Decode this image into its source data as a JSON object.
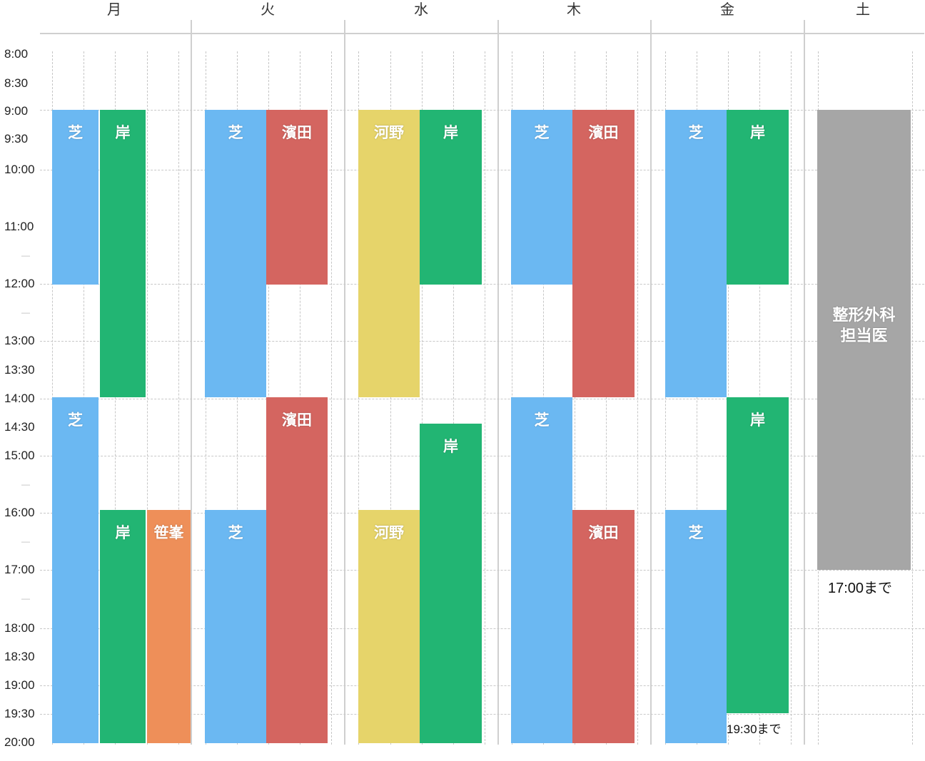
{
  "colors": {
    "shiba": "#6bb8f2",
    "kishi": "#22b573",
    "hamada": "#d46560",
    "kono": "#e6d46a",
    "sasamine": "#ee8f59",
    "seikei": "#a6a6a6"
  },
  "days": [
    "月",
    "火",
    "水",
    "木",
    "金",
    "土"
  ],
  "time_labels": [
    "8:00",
    "8:30",
    "9:00",
    "9:30",
    "10:00",
    "",
    "11:00",
    "—",
    "12:00",
    "—",
    "13:00",
    "13:30",
    "14:00",
    "14:30",
    "15:00",
    "—",
    "16:00",
    "—",
    "17:00",
    "—",
    "18:00",
    "18:30",
    "19:00",
    "19:30",
    "20:00"
  ],
  "blocks": [
    {
      "day": 0,
      "lane": 0,
      "start": "9:00",
      "end": "12:00",
      "doctor": "芝",
      "color": "shiba"
    },
    {
      "day": 0,
      "lane": 1,
      "start": "9:00",
      "end": "14:00",
      "doctor": "岸",
      "color": "kishi"
    },
    {
      "day": 0,
      "lane": 0,
      "start": "14:00",
      "end": "20:00",
      "doctor": "芝",
      "color": "shiba"
    },
    {
      "day": 0,
      "lane": 1,
      "start": "16:00",
      "end": "20:00",
      "doctor": "岸",
      "color": "kishi"
    },
    {
      "day": 0,
      "lane": 2,
      "start": "16:00",
      "end": "20:00",
      "doctor": "笹峯",
      "color": "sasamine"
    },
    {
      "day": 1,
      "lane": 0,
      "start": "9:00",
      "end": "14:00",
      "doctor": "芝",
      "color": "shiba"
    },
    {
      "day": 1,
      "lane": 1,
      "start": "9:00",
      "end": "12:00",
      "doctor": "濱田",
      "color": "hamada"
    },
    {
      "day": 1,
      "lane": 1,
      "start": "14:00",
      "end": "20:00",
      "doctor": "濱田",
      "color": "hamada"
    },
    {
      "day": 1,
      "lane": 0,
      "start": "16:00",
      "end": "20:00",
      "doctor": "芝",
      "color": "shiba"
    },
    {
      "day": 2,
      "lane": 0,
      "start": "9:00",
      "end": "14:00",
      "doctor": "河野",
      "color": "kono"
    },
    {
      "day": 2,
      "lane": 1,
      "start": "9:00",
      "end": "12:00",
      "doctor": "岸",
      "color": "kishi"
    },
    {
      "day": 2,
      "lane": 1,
      "start": "14:30",
      "end": "20:00",
      "doctor": "岸",
      "color": "kishi"
    },
    {
      "day": 2,
      "lane": 0,
      "start": "16:00",
      "end": "20:00",
      "doctor": "河野",
      "color": "kono"
    },
    {
      "day": 3,
      "lane": 0,
      "start": "9:00",
      "end": "12:00",
      "doctor": "芝",
      "color": "shiba"
    },
    {
      "day": 3,
      "lane": 1,
      "start": "9:00",
      "end": "14:00",
      "doctor": "濱田",
      "color": "hamada"
    },
    {
      "day": 3,
      "lane": 0,
      "start": "14:00",
      "end": "20:00",
      "doctor": "芝",
      "color": "shiba"
    },
    {
      "day": 3,
      "lane": 1,
      "start": "16:00",
      "end": "20:00",
      "doctor": "濱田",
      "color": "hamada"
    },
    {
      "day": 4,
      "lane": 0,
      "start": "9:00",
      "end": "14:00",
      "doctor": "芝",
      "color": "shiba"
    },
    {
      "day": 4,
      "lane": 1,
      "start": "9:00",
      "end": "12:00",
      "doctor": "岸",
      "color": "kishi"
    },
    {
      "day": 4,
      "lane": 1,
      "start": "14:00",
      "end": "19:30",
      "doctor": "岸",
      "color": "kishi"
    },
    {
      "day": 4,
      "lane": 0,
      "start": "16:00",
      "end": "20:00",
      "doctor": "芝",
      "color": "shiba"
    },
    {
      "day": 5,
      "lane": 0,
      "start": "9:00",
      "end": "17:00",
      "doctor": "整形外科\n担当医",
      "color": "seikei"
    }
  ],
  "notes": [
    {
      "day": 4,
      "text": "19:30まで"
    },
    {
      "day": 5,
      "text": "17:00まで"
    }
  ]
}
